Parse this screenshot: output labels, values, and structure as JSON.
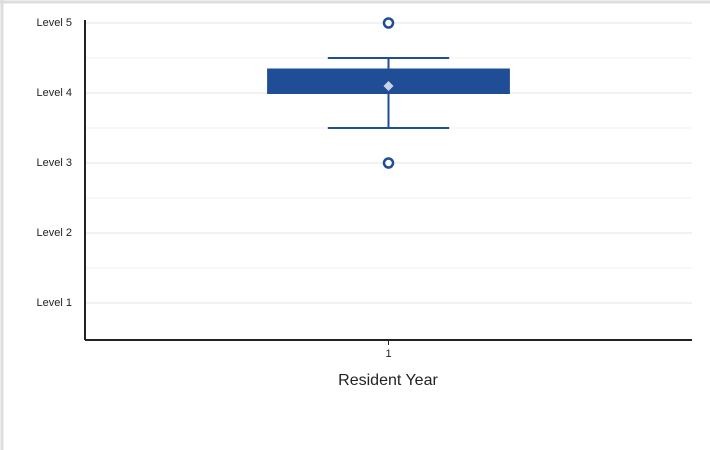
{
  "chart_data": {
    "type": "box",
    "x_label": "Resident Year",
    "categories": [
      "1"
    ],
    "boxes": [
      {
        "whisker_low": 3.5,
        "q1": 4,
        "median": 4,
        "q3": 4.35,
        "whisker_high": 4.5,
        "mean": 4.1,
        "outliers": [
          5,
          3
        ]
      }
    ],
    "color": "#1f4e96",
    "mean_color": "#c9d3e3",
    "ylim": [
      0.5,
      5
    ],
    "yticks": [
      {
        "value": 5,
        "label": "Level 5"
      },
      {
        "value": 4,
        "label": "Level 4"
      },
      {
        "value": 3,
        "label": "Level 3"
      },
      {
        "value": 2,
        "label": "Level 2"
      },
      {
        "value": 1,
        "label": "Level 1"
      }
    ],
    "minor_yticks": [
      4.5,
      3.5,
      2.5,
      1.5
    ],
    "grid": true
  }
}
